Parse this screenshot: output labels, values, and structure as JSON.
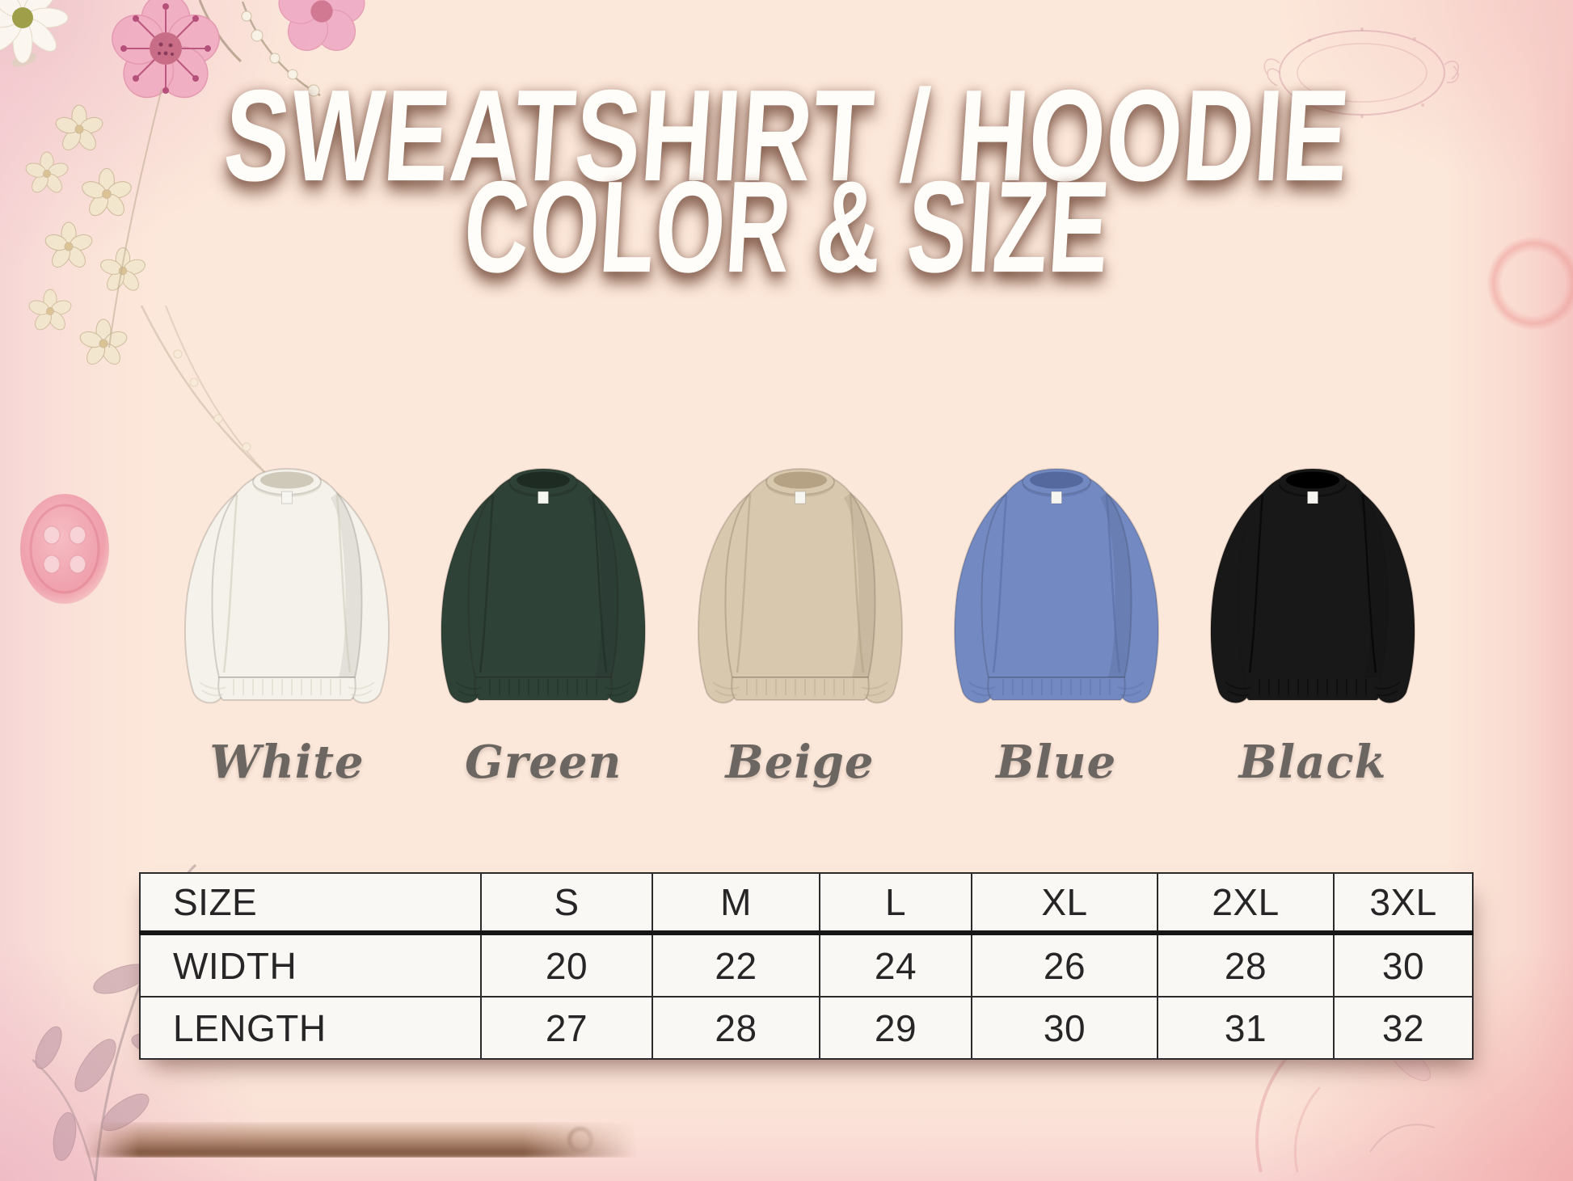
{
  "title": {
    "line1": "SWEATSHIRT / HOODIE",
    "line2": "COLOR & SIZE"
  },
  "colors": [
    {
      "name": "White",
      "fill": "#f4f2ea",
      "shade": "#cfc9b9"
    },
    {
      "name": "Green",
      "fill": "#2f4238",
      "shade": "#1d2b23"
    },
    {
      "name": "Beige",
      "fill": "#d8c8ad",
      "shade": "#b5a183"
    },
    {
      "name": "Blue",
      "fill": "#7289c2",
      "shade": "#55699f"
    },
    {
      "name": "Black",
      "fill": "#181818",
      "shade": "#000000"
    }
  ],
  "size_table": {
    "header": [
      "SIZE",
      "S",
      "M",
      "L",
      "XL",
      "2XL",
      "3XL"
    ],
    "rows": [
      {
        "label": "WIDTH",
        "values": [
          "20",
          "22",
          "24",
          "26",
          "28",
          "30"
        ]
      },
      {
        "label": "LENGTH",
        "values": [
          "27",
          "28",
          "29",
          "30",
          "31",
          "32"
        ]
      }
    ]
  },
  "theme": {
    "background": "#fce8da",
    "pink_wash": "#f3c3c6",
    "title_color": "#fffdf9",
    "title_shadow": "#76503f",
    "label_color": "#6b6661",
    "table_ink": "#262626",
    "table_bg": "#faf8f4"
  }
}
